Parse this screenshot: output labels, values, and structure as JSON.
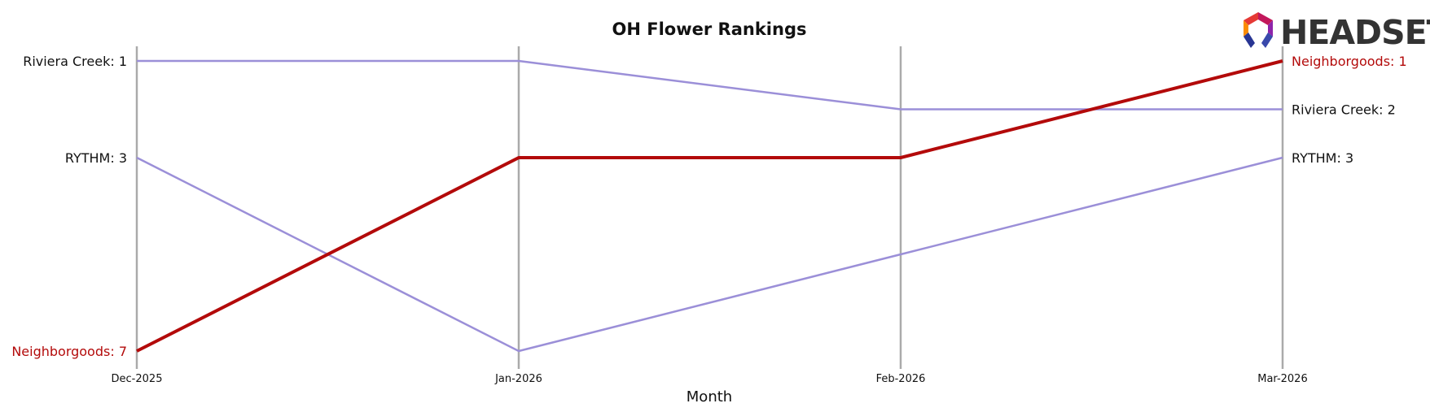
{
  "chart_data": {
    "type": "line",
    "title": "OH Flower Rankings",
    "xlabel": "Month",
    "ylabel": "",
    "x": [
      "Dec-2025",
      "Jan-2026",
      "Feb-2026",
      "Mar-2026"
    ],
    "y_scale": "rank (inverted, 1 at top)",
    "ylim": [
      7,
      1
    ],
    "series": [
      {
        "name": "Riviera Creek",
        "values": [
          1,
          1,
          2,
          2
        ],
        "color": "#9b8fd8",
        "highlight": false,
        "start_label": "Riviera Creek: 1",
        "end_label": "Riviera Creek: 2"
      },
      {
        "name": "RYTHM",
        "values": [
          3,
          7,
          5,
          3
        ],
        "color": "#9b8fd8",
        "highlight": false,
        "start_label": "RYTHM: 3",
        "end_label": "RYTHM: 3"
      },
      {
        "name": "Neighborgoods",
        "values": [
          7,
          3,
          3,
          1
        ],
        "color": "#b30a0a",
        "highlight": true,
        "start_label": "Neighborgoods: 7",
        "end_label": "Neighborgoods: 1"
      }
    ],
    "grid": "vertical lines at each month",
    "legend": "none (labels at line ends)"
  },
  "logo": {
    "text": "HEADSET",
    "icon": "headset-hexagon-logo-icon"
  }
}
